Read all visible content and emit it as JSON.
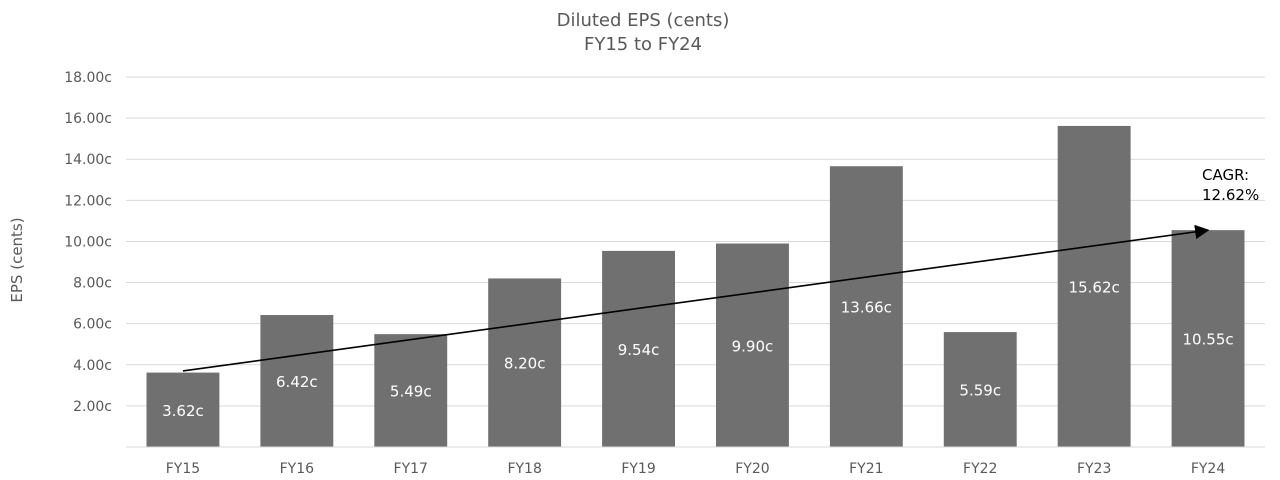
{
  "chart_data": {
    "type": "bar",
    "title": "Diluted EPS (cents)",
    "subtitle": "FY15 to FY24",
    "xlabel": "",
    "ylabel": "EPS (cents)",
    "ylim": [
      0,
      18
    ],
    "yticks": [
      2,
      4,
      6,
      8,
      10,
      12,
      14,
      16,
      18
    ],
    "ytick_labels": [
      "2.00c",
      "4.00c",
      "6.00c",
      "8.00c",
      "10.00c",
      "12.00c",
      "14.00c",
      "16.00c",
      "18.00c"
    ],
    "grid": true,
    "categories": [
      "FY15",
      "FY16",
      "FY17",
      "FY18",
      "FY19",
      "FY20",
      "FY21",
      "FY22",
      "FY23",
      "FY24"
    ],
    "values": [
      3.62,
      6.42,
      5.49,
      8.2,
      9.54,
      9.9,
      13.66,
      5.59,
      15.62,
      10.55
    ],
    "data_labels": [
      "3.62c",
      "6.42c",
      "5.49c",
      "8.20c",
      "9.54c",
      "9.90c",
      "13.66c",
      "5.59c",
      "15.62c",
      "10.55c"
    ],
    "bar_color": "#707070",
    "trend_arrow": {
      "from": {
        "x": "FY15",
        "y": 3.7
      },
      "to": {
        "x": "FY24",
        "y": 10.55
      },
      "color": "#000000"
    },
    "annotation": {
      "lines": [
        "CAGR:",
        "12.62%"
      ]
    }
  }
}
